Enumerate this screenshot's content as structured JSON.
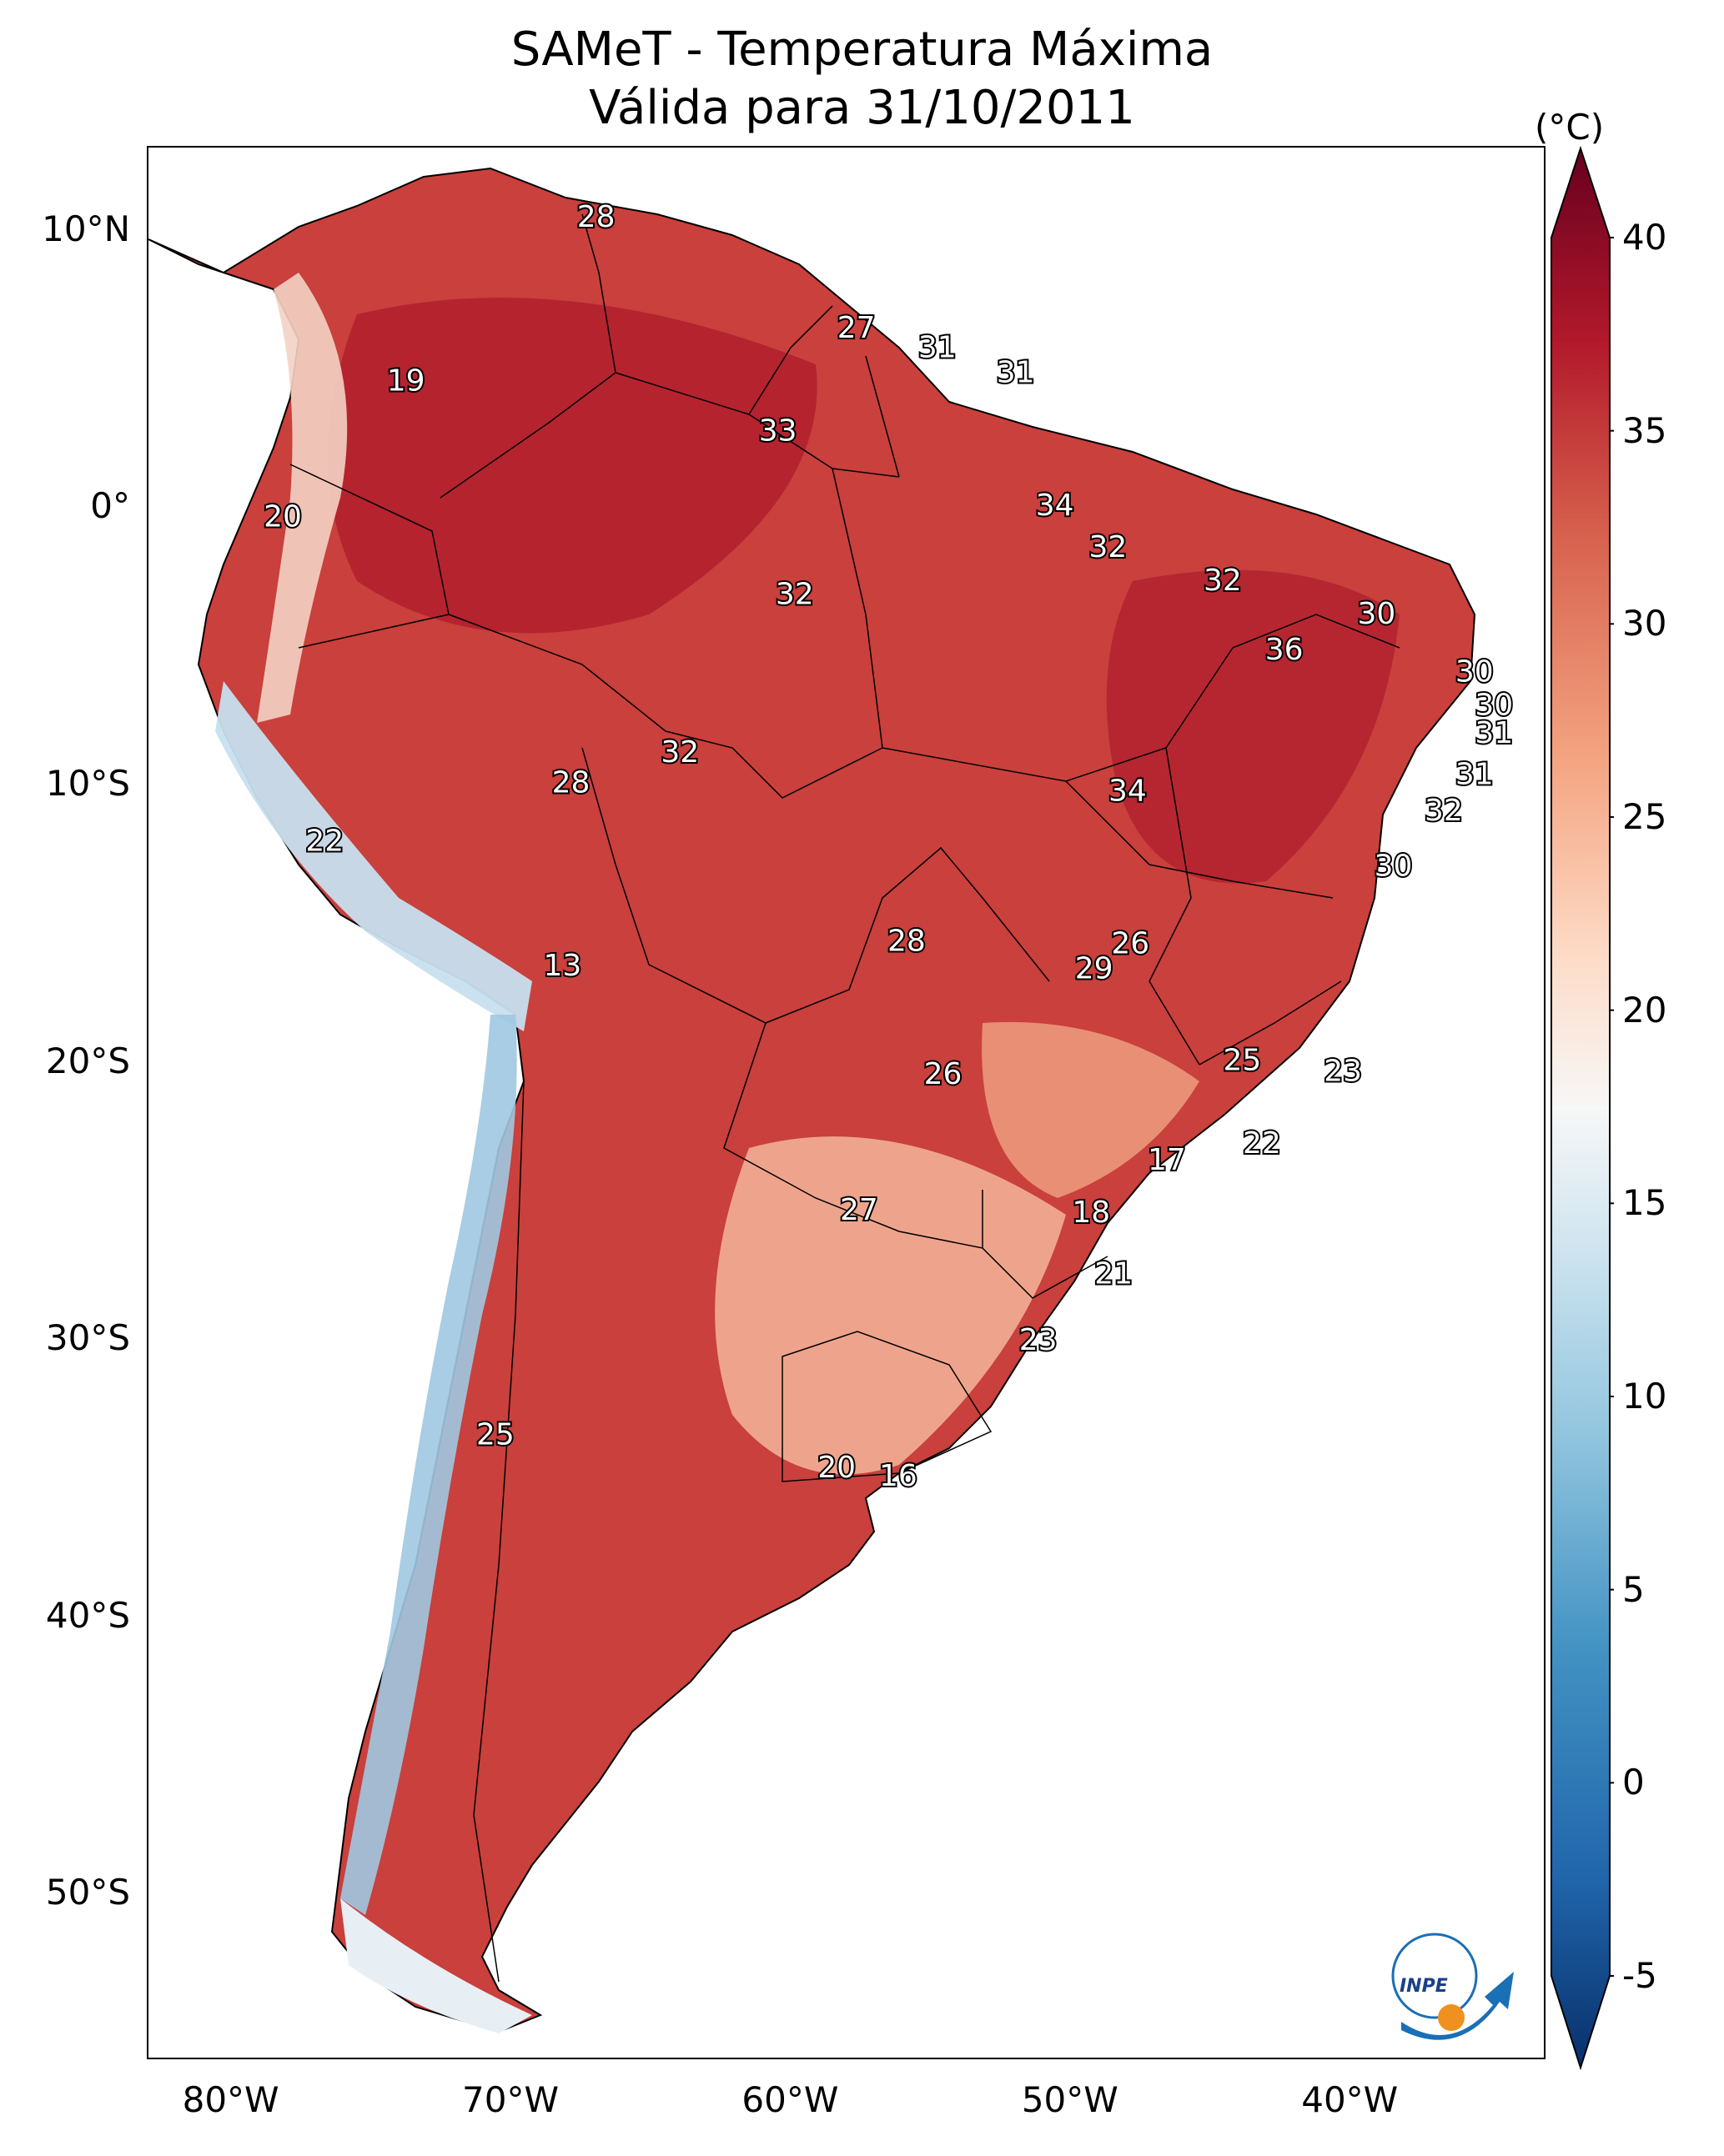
{
  "title": {
    "line1": "SAMeT - Temperatura Máxima",
    "line2": "Válida para 31/10/2011"
  },
  "axes": {
    "lat_ticks": [
      {
        "label": "10°N",
        "value": 10
      },
      {
        "label": "0°",
        "value": 0
      },
      {
        "label": "10°S",
        "value": -10
      },
      {
        "label": "20°S",
        "value": -20
      },
      {
        "label": "30°S",
        "value": -30
      },
      {
        "label": "40°S",
        "value": -40
      },
      {
        "label": "50°S",
        "value": -50
      }
    ],
    "lon_ticks": [
      {
        "label": "80°W",
        "value": -80
      },
      {
        "label": "70°W",
        "value": -70
      },
      {
        "label": "60°W",
        "value": -60
      },
      {
        "label": "50°W",
        "value": -50
      },
      {
        "label": "40°W",
        "value": -40
      }
    ],
    "lon_range": [
      -83,
      -33
    ],
    "lat_range": [
      -56,
      13
    ]
  },
  "colorbar": {
    "unit": "(°C)",
    "min": -5,
    "max": 40,
    "ticks": [
      "-5",
      "0",
      "5",
      "10",
      "15",
      "20",
      "25",
      "30",
      "35",
      "40"
    ],
    "colors": [
      "#08306b",
      "#2166ac",
      "#4393c3",
      "#92c5de",
      "#d1e5f0",
      "#f7f7f7",
      "#fddbc7",
      "#f4a582",
      "#d6604d",
      "#b2182b",
      "#67001f"
    ]
  },
  "station_labels": [
    {
      "text": "28",
      "lon": -67.0,
      "lat": 10.5
    },
    {
      "text": "27",
      "lon": -57.7,
      "lat": 6.5
    },
    {
      "text": "31",
      "lon": -54.8,
      "lat": 5.8
    },
    {
      "text": "31",
      "lon": -52.0,
      "lat": 4.9
    },
    {
      "text": "19",
      "lon": -73.8,
      "lat": 4.6
    },
    {
      "text": "33",
      "lon": -60.5,
      "lat": 2.8
    },
    {
      "text": "34",
      "lon": -50.6,
      "lat": 0.1
    },
    {
      "text": "20",
      "lon": -78.2,
      "lat": -0.3
    },
    {
      "text": "32",
      "lon": -48.7,
      "lat": -1.4
    },
    {
      "text": "32",
      "lon": -59.9,
      "lat": -3.1
    },
    {
      "text": "32",
      "lon": -44.6,
      "lat": -2.6
    },
    {
      "text": "30",
      "lon": -39.1,
      "lat": -3.8
    },
    {
      "text": "36",
      "lon": -42.4,
      "lat": -5.1
    },
    {
      "text": "30",
      "lon": -35.6,
      "lat": -5.9
    },
    {
      "text": "30",
      "lon": -34.9,
      "lat": -7.1
    },
    {
      "text": "31",
      "lon": -34.9,
      "lat": -8.1
    },
    {
      "text": "32",
      "lon": -64.0,
      "lat": -8.8
    },
    {
      "text": "28",
      "lon": -67.9,
      "lat": -9.9
    },
    {
      "text": "34",
      "lon": -48.0,
      "lat": -10.2
    },
    {
      "text": "31",
      "lon": -35.6,
      "lat": -9.6
    },
    {
      "text": "32",
      "lon": -36.7,
      "lat": -10.9
    },
    {
      "text": "22",
      "lon": -76.7,
      "lat": -12.0
    },
    {
      "text": "30",
      "lon": -38.5,
      "lat": -12.9
    },
    {
      "text": "28",
      "lon": -55.9,
      "lat": -15.6
    },
    {
      "text": "26",
      "lon": -47.9,
      "lat": -15.7
    },
    {
      "text": "29",
      "lon": -49.2,
      "lat": -16.6
    },
    {
      "text": "13",
      "lon": -68.2,
      "lat": -16.5
    },
    {
      "text": "25",
      "lon": -43.9,
      "lat": -19.9
    },
    {
      "text": "23",
      "lon": -40.3,
      "lat": -20.3
    },
    {
      "text": "26",
      "lon": -54.6,
      "lat": -20.4
    },
    {
      "text": "22",
      "lon": -43.2,
      "lat": -22.9
    },
    {
      "text": "17",
      "lon": -46.6,
      "lat": -23.5
    },
    {
      "text": "27",
      "lon": -57.6,
      "lat": -25.3
    },
    {
      "text": "18",
      "lon": -49.3,
      "lat": -25.4
    },
    {
      "text": "21",
      "lon": -48.5,
      "lat": -27.6
    },
    {
      "text": "23",
      "lon": -51.2,
      "lat": -30.0
    },
    {
      "text": "25",
      "lon": -70.6,
      "lat": -33.4
    },
    {
      "text": "20",
      "lon": -58.4,
      "lat": -34.6
    },
    {
      "text": "16",
      "lon": -56.2,
      "lat": -34.9
    }
  ]
}
